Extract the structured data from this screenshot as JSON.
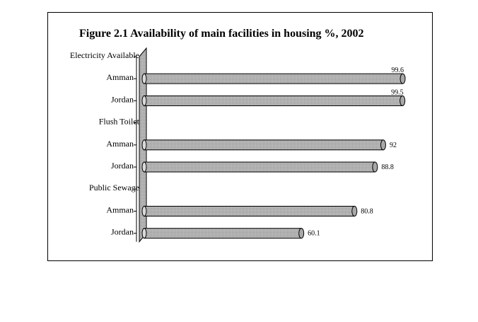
{
  "chart_data": {
    "type": "bar",
    "orientation": "horizontal",
    "title": "Figure 2.1 Availability of main facilities in housing %, 2002",
    "xlabel": "",
    "ylabel": "",
    "xlim": [
      0,
      100
    ],
    "grid": false,
    "legend": "none",
    "bar_color": "#c8c8c8",
    "rows": [
      {
        "label": "Electricity Available",
        "is_group": true
      },
      {
        "label": "Amman",
        "value": 99.6
      },
      {
        "label": "Jordan",
        "value": 99.5
      },
      {
        "label": "Flush Toilet",
        "is_group": true
      },
      {
        "label": "Amman",
        "value": 92
      },
      {
        "label": "Jordan",
        "value": 88.8
      },
      {
        "label": "Public Sewage",
        "is_group": true
      },
      {
        "label": "Amman",
        "value": 80.8
      },
      {
        "label": "Jordan",
        "value": 60.1
      }
    ]
  }
}
